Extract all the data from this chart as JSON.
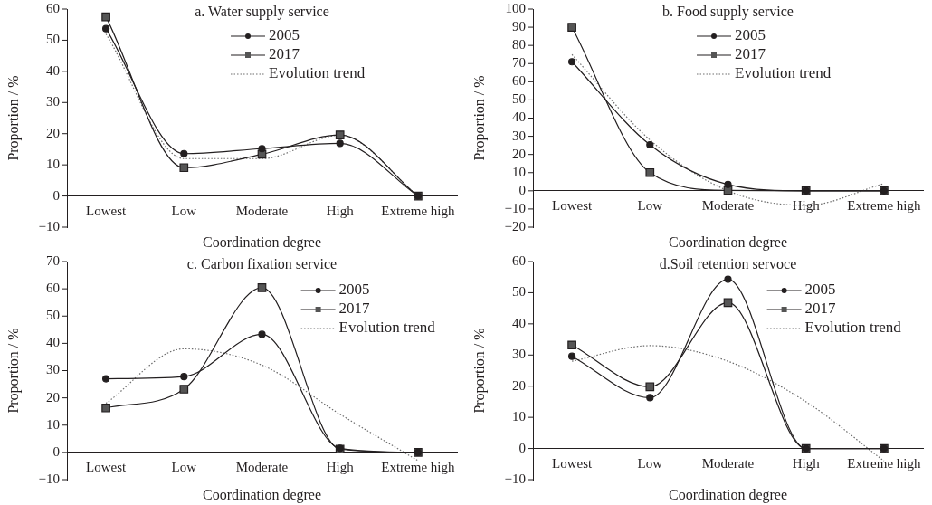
{
  "chart_data": [
    {
      "type": "line",
      "title": "a. Water supply service",
      "xlabel": "Coordination degree",
      "ylabel": "Proportion / %",
      "categories": [
        "Lowest",
        "Low",
        "Moderate",
        "High",
        "Extreme high"
      ],
      "ylim": [
        -10,
        60
      ],
      "yticks": [
        -10,
        0,
        10,
        20,
        30,
        40,
        50,
        60
      ],
      "grid": false,
      "legend": "top right",
      "series": [
        {
          "name": "2005",
          "color": "#231f20",
          "marker": "circle",
          "values": [
            53.7,
            13.6,
            15.2,
            16.9,
            0
          ]
        },
        {
          "name": "2017",
          "color": "#231f20",
          "marker": "square",
          "values": [
            57.5,
            9.1,
            13.4,
            19.6,
            0
          ]
        },
        {
          "name": "Evolution trend",
          "color": "#6d6d6d",
          "marker": "none",
          "line_style": "dotted",
          "values": [
            52,
            12,
            12,
            19.5,
            0
          ]
        }
      ]
    },
    {
      "type": "line",
      "title": "b. Food supply service",
      "xlabel": "Coordination degree",
      "ylabel": "Proportion / %",
      "categories": [
        "Lowest",
        "Low",
        "Moderate",
        "High",
        "Extreme high"
      ],
      "ylim": [
        -20,
        100
      ],
      "yticks": [
        -20,
        -10,
        0,
        10,
        20,
        30,
        40,
        50,
        60,
        70,
        80,
        90,
        100
      ],
      "grid": false,
      "legend": "top right",
      "series": [
        {
          "name": "2005",
          "color": "#231f20",
          "marker": "circle",
          "values": [
            71,
            25.3,
            3.5,
            0,
            0
          ]
        },
        {
          "name": "2017",
          "color": "#231f20",
          "marker": "square",
          "values": [
            90,
            10,
            0.2,
            0,
            0
          ]
        },
        {
          "name": "Evolution trend",
          "color": "#6d6d6d",
          "marker": "none",
          "line_style": "dotted",
          "values": [
            75,
            28,
            0,
            -8,
            4
          ]
        }
      ]
    },
    {
      "type": "line",
      "title": "c. Carbon fixation service",
      "xlabel": "Coordination degree",
      "ylabel": "Proportion / %",
      "categories": [
        "Lowest",
        "Low",
        "Moderate",
        "High",
        "Extreme high"
      ],
      "ylim": [
        -10,
        70
      ],
      "yticks": [
        -10,
        0,
        10,
        20,
        30,
        40,
        50,
        60,
        70
      ],
      "grid": false,
      "legend": "right",
      "series": [
        {
          "name": "2005",
          "color": "#231f20",
          "marker": "circle",
          "values": [
            27,
            27.8,
            43.3,
            1.5,
            0
          ]
        },
        {
          "name": "2017",
          "color": "#231f20",
          "marker": "square",
          "values": [
            16.3,
            23.2,
            60.4,
            1.2,
            0
          ]
        },
        {
          "name": "Evolution trend",
          "color": "#6d6d6d",
          "marker": "none",
          "line_style": "dotted",
          "values": [
            18,
            38,
            32,
            14,
            -3
          ]
        }
      ]
    },
    {
      "type": "line",
      "title": "d.Soil retention servoce",
      "xlabel": "Coordination degree",
      "ylabel": "Proportion / %",
      "categories": [
        "Lowest",
        "Low",
        "Moderate",
        "High",
        "Extreme high"
      ],
      "ylim": [
        -10,
        60
      ],
      "yticks": [
        -10,
        0,
        10,
        20,
        30,
        40,
        50,
        60
      ],
      "grid": false,
      "legend": "right",
      "series": [
        {
          "name": "2005",
          "color": "#231f20",
          "marker": "circle",
          "values": [
            29.6,
            16.3,
            54.3,
            0,
            0
          ]
        },
        {
          "name": "2017",
          "color": "#231f20",
          "marker": "square",
          "values": [
            33.2,
            19.8,
            46.8,
            0,
            0
          ]
        },
        {
          "name": "Evolution trend",
          "color": "#6d6d6d",
          "marker": "none",
          "line_style": "dotted",
          "values": [
            28,
            33,
            28,
            15,
            -4
          ]
        }
      ]
    }
  ]
}
